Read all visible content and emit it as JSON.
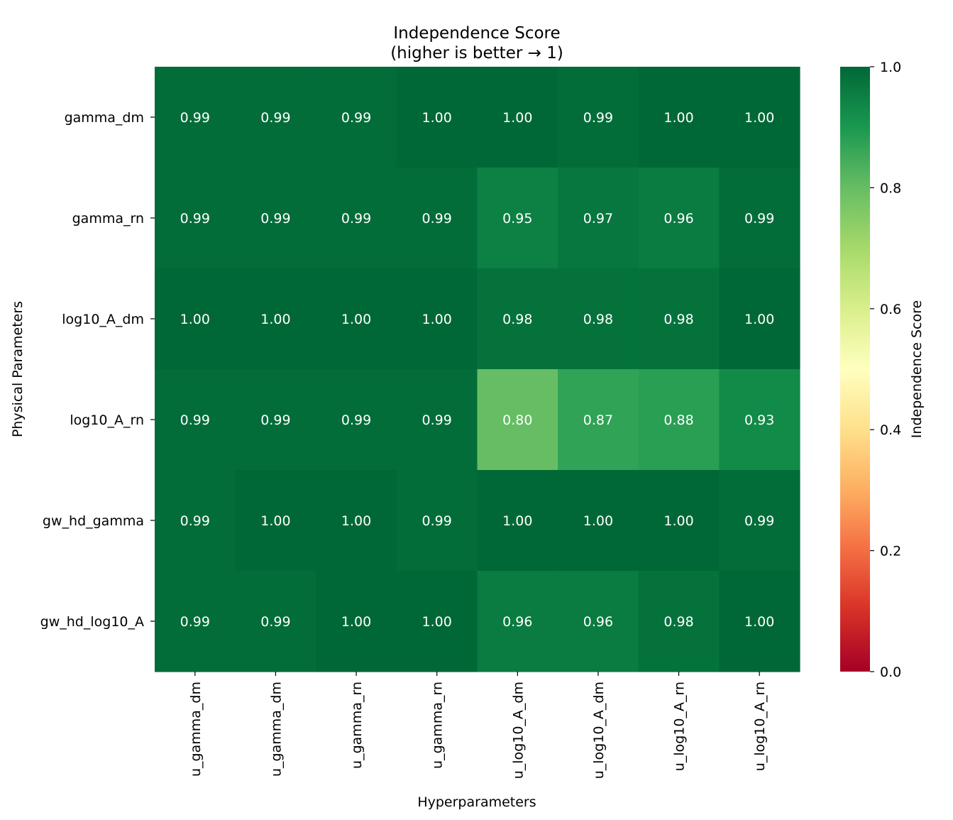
{
  "chart_data": {
    "type": "heatmap",
    "title_line1": "Independence Score",
    "title_line2": "(higher is better → 1)",
    "xlabel": "Hyperparameters",
    "ylabel": "Physical Parameters",
    "colorbar_label": "Independence Score",
    "x_categories": [
      "u_gamma_dm",
      "u_gamma_dm",
      "u_gamma_rn",
      "u_gamma_rn",
      "u_log10_A_dm",
      "u_log10_A_dm",
      "u_log10_A_rn",
      "u_log10_A_rn"
    ],
    "y_categories": [
      "gamma_dm",
      "gamma_rn",
      "log10_A_dm",
      "log10_A_rn",
      "gw_hd_gamma",
      "gw_hd_log10_A"
    ],
    "values": [
      [
        0.99,
        0.99,
        0.99,
        1.0,
        1.0,
        0.99,
        1.0,
        1.0
      ],
      [
        0.99,
        0.99,
        0.99,
        0.99,
        0.95,
        0.97,
        0.96,
        0.99
      ],
      [
        1.0,
        1.0,
        1.0,
        1.0,
        0.98,
        0.98,
        0.98,
        1.0
      ],
      [
        0.99,
        0.99,
        0.99,
        0.99,
        0.8,
        0.87,
        0.88,
        0.93
      ],
      [
        0.99,
        1.0,
        1.0,
        0.99,
        1.0,
        1.0,
        1.0,
        0.99
      ],
      [
        0.99,
        0.99,
        1.0,
        1.0,
        0.96,
        0.96,
        0.98,
        1.0
      ]
    ],
    "vmin": 0.0,
    "vmax": 1.0,
    "colormap": "RdYlGn",
    "colorbar_ticks": [
      0.0,
      0.2,
      0.4,
      0.6,
      0.8,
      1.0
    ],
    "annotation_format": "2 decimals",
    "annotation_color": "#ffffff"
  }
}
